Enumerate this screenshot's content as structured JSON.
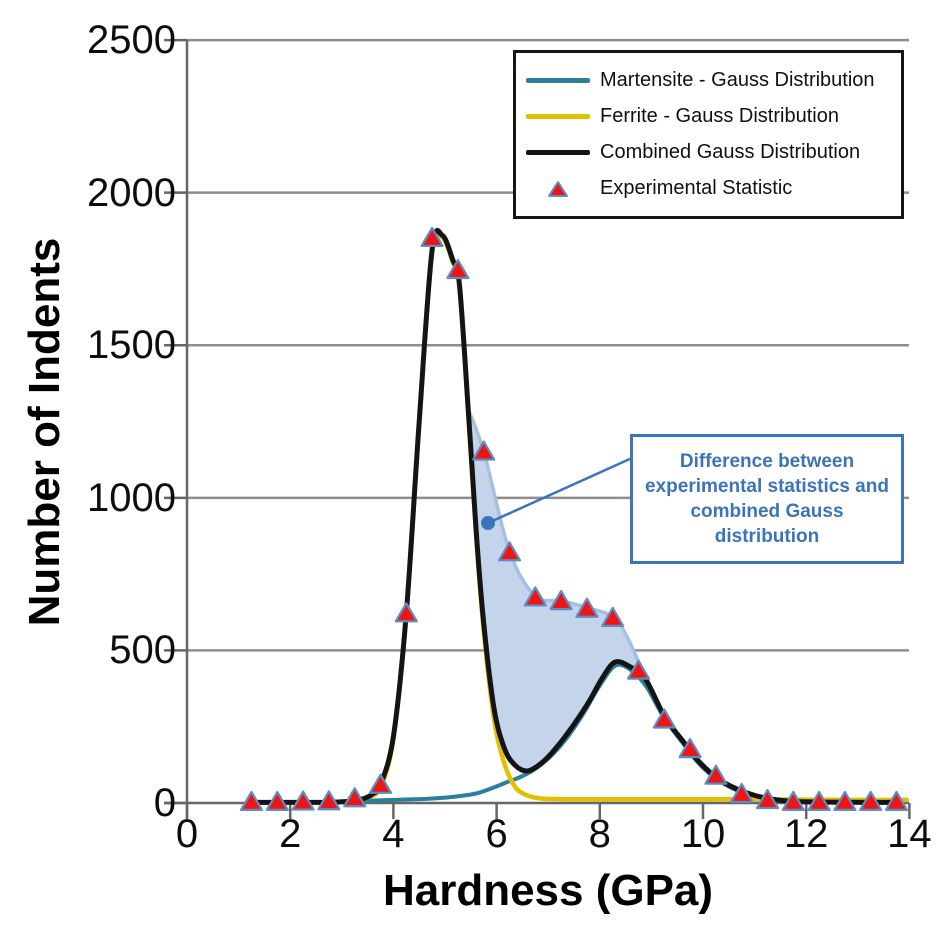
{
  "axes": {
    "x": {
      "label": "Hardness (GPa)",
      "min": 0,
      "max": 14,
      "tick_values": [
        0,
        2,
        4,
        6,
        8,
        10,
        12,
        14
      ],
      "tick_labels": [
        "0",
        "2",
        "4",
        "6",
        "8",
        "10",
        "12",
        "14"
      ]
    },
    "y": {
      "label": "Number of Indents",
      "min": 0,
      "max": 2500,
      "tick_values": [
        0,
        500,
        1000,
        1500,
        2000,
        2500
      ],
      "tick_labels": [
        "0",
        "500",
        "1000",
        "1500",
        "2000",
        "2500"
      ]
    }
  },
  "legend": {
    "items": [
      {
        "label": "Martensite - Gauss Distribution",
        "swatch": "line",
        "color": "#2a7f9d"
      },
      {
        "label": "Ferrite - Gauss Distribution",
        "swatch": "line",
        "color": "#e2c000"
      },
      {
        "label": "Combined Gauss Distribution",
        "swatch": "line",
        "color": "#141414"
      },
      {
        "label": "Experimental Statistic",
        "swatch": "triangle",
        "color": "#ee1515",
        "edge": "#5b8ec4"
      }
    ]
  },
  "annotation": {
    "text": "Difference between experimental statistics and combined Gauss distribution",
    "color": "#3b74bb"
  },
  "colors": {
    "martensite": "#2a7f9d",
    "ferrite": "#e2c000",
    "combined": "#141414",
    "experimental_fill": "#ee1515",
    "experimental_edge": "#5b8ec4",
    "shading_fill": "#c4d4ea",
    "shading_edge": "#a6c0e0",
    "grid": "#8e8e8e",
    "axis": "#666666",
    "annotation_blue": "#3b74bb"
  },
  "chart_data": {
    "type": "line",
    "title": "",
    "xlabel": "Hardness (GPa)",
    "ylabel": "Number of Indents",
    "xlim": [
      0,
      14
    ],
    "ylim": [
      0,
      2500
    ],
    "grid": "horizontal gridlines every 500",
    "legend_position": "top-right",
    "series": [
      {
        "name": "Martensite - Gauss Distribution",
        "type": "line",
        "color": "#2a7f9d",
        "points": [
          [
            1.2,
            1
          ],
          [
            2,
            1
          ],
          [
            3,
            3
          ],
          [
            3.4,
            7
          ],
          [
            4,
            10
          ],
          [
            4.4,
            12
          ],
          [
            4.8,
            15
          ],
          [
            5.2,
            21
          ],
          [
            5.6,
            31
          ],
          [
            5.9,
            48
          ],
          [
            6.2,
            68
          ],
          [
            6.5,
            88
          ],
          [
            6.8,
            118
          ],
          [
            7.1,
            162
          ],
          [
            7.4,
            222
          ],
          [
            7.7,
            298
          ],
          [
            8,
            385
          ],
          [
            8.3,
            450
          ],
          [
            8.6,
            436
          ],
          [
            8.9,
            382
          ],
          [
            9.25,
            278
          ],
          [
            9.6,
            198
          ],
          [
            9.9,
            133
          ],
          [
            10.25,
            80
          ],
          [
            10.6,
            46
          ],
          [
            11,
            22
          ],
          [
            11.5,
            9
          ],
          [
            12,
            4
          ],
          [
            13,
            2
          ],
          [
            13.8,
            1
          ]
        ]
      },
      {
        "name": "Ferrite - Gauss Distribution",
        "type": "line",
        "color": "#e2c000",
        "points": [
          [
            1.2,
            1
          ],
          [
            2,
            1
          ],
          [
            2.8,
            2
          ],
          [
            3.2,
            5
          ],
          [
            3.5,
            18
          ],
          [
            3.75,
            52
          ],
          [
            4,
            210
          ],
          [
            4.25,
            615
          ],
          [
            4.5,
            1243
          ],
          [
            4.75,
            1806
          ],
          [
            4.95,
            1853
          ],
          [
            5.15,
            1772
          ],
          [
            5.28,
            1690
          ],
          [
            5.45,
            1278
          ],
          [
            5.6,
            885
          ],
          [
            5.75,
            565
          ],
          [
            5.95,
            275
          ],
          [
            6.15,
            130
          ],
          [
            6.35,
            55
          ],
          [
            6.55,
            28
          ],
          [
            6.8,
            16
          ],
          [
            7.1,
            13
          ],
          [
            7.6,
            12
          ],
          [
            9,
            12
          ],
          [
            11,
            12
          ],
          [
            12,
            11
          ],
          [
            13,
            10
          ],
          [
            13.95,
            10
          ]
        ]
      },
      {
        "name": "Combined Gauss Distribution",
        "type": "line",
        "color": "#141414",
        "points": [
          [
            1.2,
            2
          ],
          [
            2,
            2
          ],
          [
            2.7,
            2
          ],
          [
            3.1,
            5
          ],
          [
            3.4,
            13
          ],
          [
            3.6,
            30
          ],
          [
            3.75,
            60
          ],
          [
            4,
            218
          ],
          [
            4.25,
            622
          ],
          [
            4.5,
            1250
          ],
          [
            4.75,
            1812
          ],
          [
            4.95,
            1860
          ],
          [
            5.15,
            1780
          ],
          [
            5.28,
            1700
          ],
          [
            5.45,
            1290
          ],
          [
            5.6,
            900
          ],
          [
            5.75,
            590
          ],
          [
            5.95,
            310
          ],
          [
            6.15,
            180
          ],
          [
            6.35,
            125
          ],
          [
            6.6,
            105
          ],
          [
            6.9,
            135
          ],
          [
            7.2,
            190
          ],
          [
            7.5,
            258
          ],
          [
            7.8,
            335
          ],
          [
            8.05,
            410
          ],
          [
            8.3,
            462
          ],
          [
            8.6,
            445
          ],
          [
            8.88,
            408
          ],
          [
            9.25,
            285
          ],
          [
            9.6,
            205
          ],
          [
            9.9,
            140
          ],
          [
            10.25,
            85
          ],
          [
            10.6,
            50
          ],
          [
            11,
            25
          ],
          [
            11.4,
            11
          ],
          [
            11.8,
            5
          ],
          [
            12.4,
            3
          ],
          [
            13.2,
            2
          ],
          [
            13.8,
            2
          ]
        ]
      },
      {
        "name": "Experimental Statistic",
        "type": "scatter",
        "marker": "triangle",
        "fill": "#ee1515",
        "edge": "#5b8ec4",
        "points": [
          [
            1.25,
            2
          ],
          [
            1.75,
            2
          ],
          [
            2.25,
            3
          ],
          [
            2.75,
            4
          ],
          [
            3.25,
            14
          ],
          [
            3.75,
            58
          ],
          [
            4.25,
            620
          ],
          [
            4.75,
            1850
          ],
          [
            5.25,
            1745
          ],
          [
            5.75,
            1150
          ],
          [
            6.25,
            820
          ],
          [
            6.75,
            672
          ],
          [
            7.25,
            660
          ],
          [
            7.75,
            635
          ],
          [
            8.25,
            605
          ],
          [
            8.75,
            432
          ],
          [
            9.25,
            272
          ],
          [
            9.75,
            175
          ],
          [
            10.25,
            88
          ],
          [
            10.75,
            28
          ],
          [
            11.25,
            8
          ],
          [
            11.75,
            2
          ],
          [
            12.25,
            2
          ],
          [
            12.75,
            2
          ],
          [
            13.25,
            2
          ],
          [
            13.75,
            2
          ]
        ]
      }
    ],
    "shaded_region": {
      "label": "Difference between experimental statistics and combined Gauss distribution",
      "fill": "#c4d4ea",
      "edge": "#a6c0e0",
      "x_range": [
        5.45,
        8.88
      ],
      "upper": [
        [
          5.45,
          1290
        ],
        [
          5.75,
          1152
        ],
        [
          6.25,
          825
        ],
        [
          6.75,
          678
        ],
        [
          7.25,
          663
        ],
        [
          7.75,
          640
        ],
        [
          8.25,
          610
        ],
        [
          8.55,
          538
        ],
        [
          8.88,
          408
        ]
      ],
      "lower_follows": "Combined Gauss Distribution"
    }
  }
}
